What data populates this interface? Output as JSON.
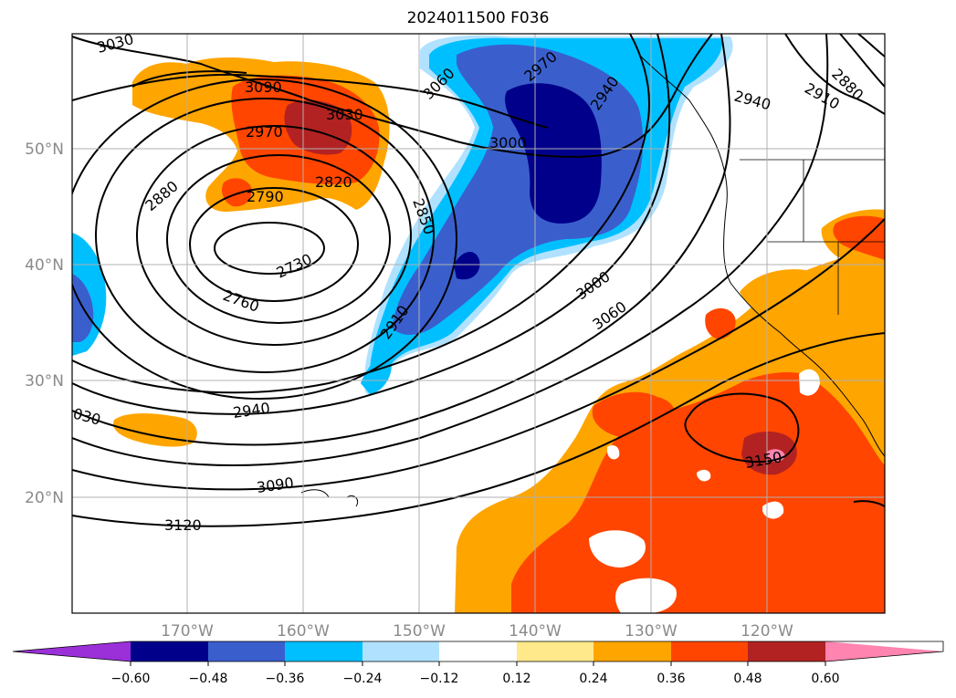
{
  "title": "2024011500 F036",
  "lat_labels": [
    "50°N",
    "40°N",
    "30°N",
    "20°N"
  ],
  "lon_labels": [
    "170°W",
    "160°W",
    "150°W",
    "140°W",
    "130°W",
    "120°W"
  ],
  "contour_labels": [
    "3030",
    "3090",
    "3030",
    "2970",
    "2820",
    "2790",
    "2880",
    "2730",
    "2760",
    "2850",
    "2910",
    "2940",
    "3090",
    "3120",
    "030",
    "3060",
    "2970",
    "2940",
    "3000",
    "2940",
    "2910",
    "2880",
    "3000",
    "3060",
    "3150"
  ],
  "colorbar": {
    "ticks": [
      "−0.60",
      "−0.48",
      "−0.36",
      "−0.24",
      "−0.12",
      "0.12",
      "0.24",
      "0.36",
      "0.48",
      "0.60"
    ],
    "colors": [
      "#9b30d9",
      "#00008b",
      "#3a5fcd",
      "#00bfff",
      "#b0e2ff",
      "#ffffff",
      "#ffe98a",
      "#ffa500",
      "#ff4500",
      "#b22222",
      "#ff85b0"
    ]
  }
}
